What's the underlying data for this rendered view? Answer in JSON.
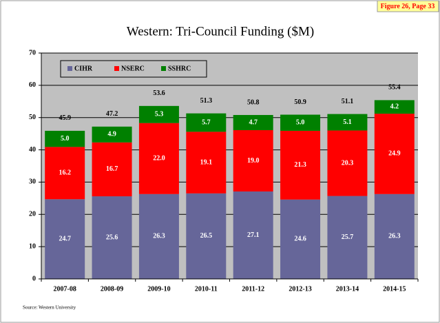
{
  "chart_data": {
    "type": "stacked_bar",
    "title": "Western: Tri-Council Funding ($M)",
    "badge": "Figure 26, Page 33",
    "source": "Source:  Western University",
    "categories": [
      "2007-08",
      "2008-09",
      "2009-10",
      "2010-11",
      "2011-12",
      "2012-13",
      "2013-14",
      "2014-15"
    ],
    "series": [
      {
        "name": "CIHR",
        "color": "#666699",
        "values": [
          24.7,
          25.6,
          26.3,
          26.5,
          27.1,
          24.6,
          25.7,
          26.3
        ],
        "value_labels": [
          "24.7",
          "25.6",
          "26.3",
          "26.5",
          "27.1",
          "24.6",
          "25.7",
          "26.3"
        ]
      },
      {
        "name": "NSERC",
        "color": "#ff0000",
        "values": [
          16.2,
          16.7,
          22.0,
          19.1,
          19.0,
          21.3,
          20.3,
          24.9
        ],
        "value_labels": [
          "16.2",
          "16.7",
          "22.0",
          "19.1",
          "19.0",
          "21.3",
          "20.3",
          "24.9"
        ]
      },
      {
        "name": "SSHRC",
        "color": "#008000",
        "values": [
          5.0,
          4.9,
          5.3,
          5.7,
          4.7,
          5.0,
          5.1,
          4.2
        ],
        "value_labels": [
          "5.0",
          "4.9",
          "5.3",
          "5.7",
          "4.7",
          "5.0",
          "5.1",
          "4.2"
        ]
      }
    ],
    "totals": [
      45.9,
      47.2,
      53.6,
      51.3,
      50.8,
      50.9,
      51.1,
      55.4
    ],
    "ylim": [
      0,
      70
    ],
    "yticks": [
      0,
      10,
      20,
      30,
      40,
      50,
      60,
      70
    ],
    "grid": true,
    "legend": "top-left"
  }
}
